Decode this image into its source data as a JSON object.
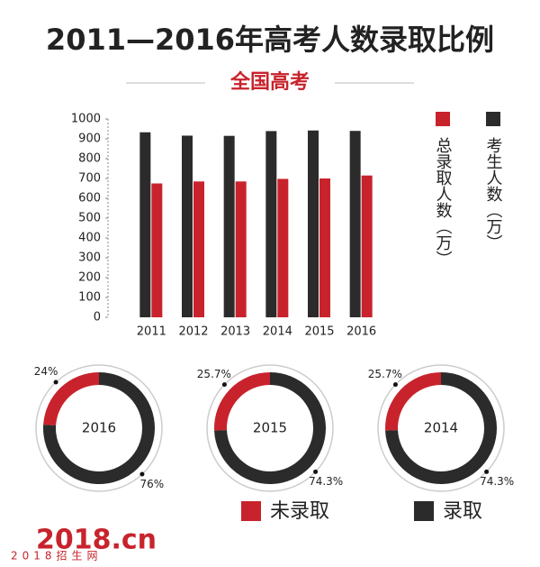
{
  "header": {
    "title": "2011—2016年高考人数录取比例",
    "subtitle": "全国高考"
  },
  "chart_data": [
    {
      "type": "bar",
      "categories": [
        "2011",
        "2012",
        "2013",
        "2014",
        "2015",
        "2016"
      ],
      "series": [
        {
          "name": "考生人数（万）",
          "color": "#2b2b2b",
          "values": [
            933,
            916,
            915,
            939,
            942,
            940
          ]
        },
        {
          "name": "总录取人数（万）",
          "color": "#c8232c",
          "values": [
            675,
            685,
            685,
            698,
            700,
            715
          ]
        }
      ],
      "ylim": [
        0,
        1000
      ],
      "yticks": [
        0,
        100,
        200,
        300,
        400,
        500,
        600,
        700,
        800,
        900,
        1000
      ]
    },
    {
      "type": "donut",
      "center_label": "2016",
      "values": [
        24,
        76
      ],
      "value_labels": [
        "24%",
        "76%"
      ]
    },
    {
      "type": "donut",
      "center_label": "2015",
      "values": [
        25.7,
        74.3
      ],
      "value_labels": [
        "25.7%",
        "74.3%"
      ]
    },
    {
      "type": "donut",
      "center_label": "2014",
      "values": [
        25.7,
        74.3
      ],
      "value_labels": [
        "25.7%",
        "74.3%"
      ]
    }
  ],
  "donut_legend": [
    {
      "name": "未录取",
      "color": "#c8232c"
    },
    {
      "name": "录取",
      "color": "#2b2b2b"
    }
  ],
  "footer": {
    "logo": "2018.cn",
    "tagline": "2018招生网"
  }
}
